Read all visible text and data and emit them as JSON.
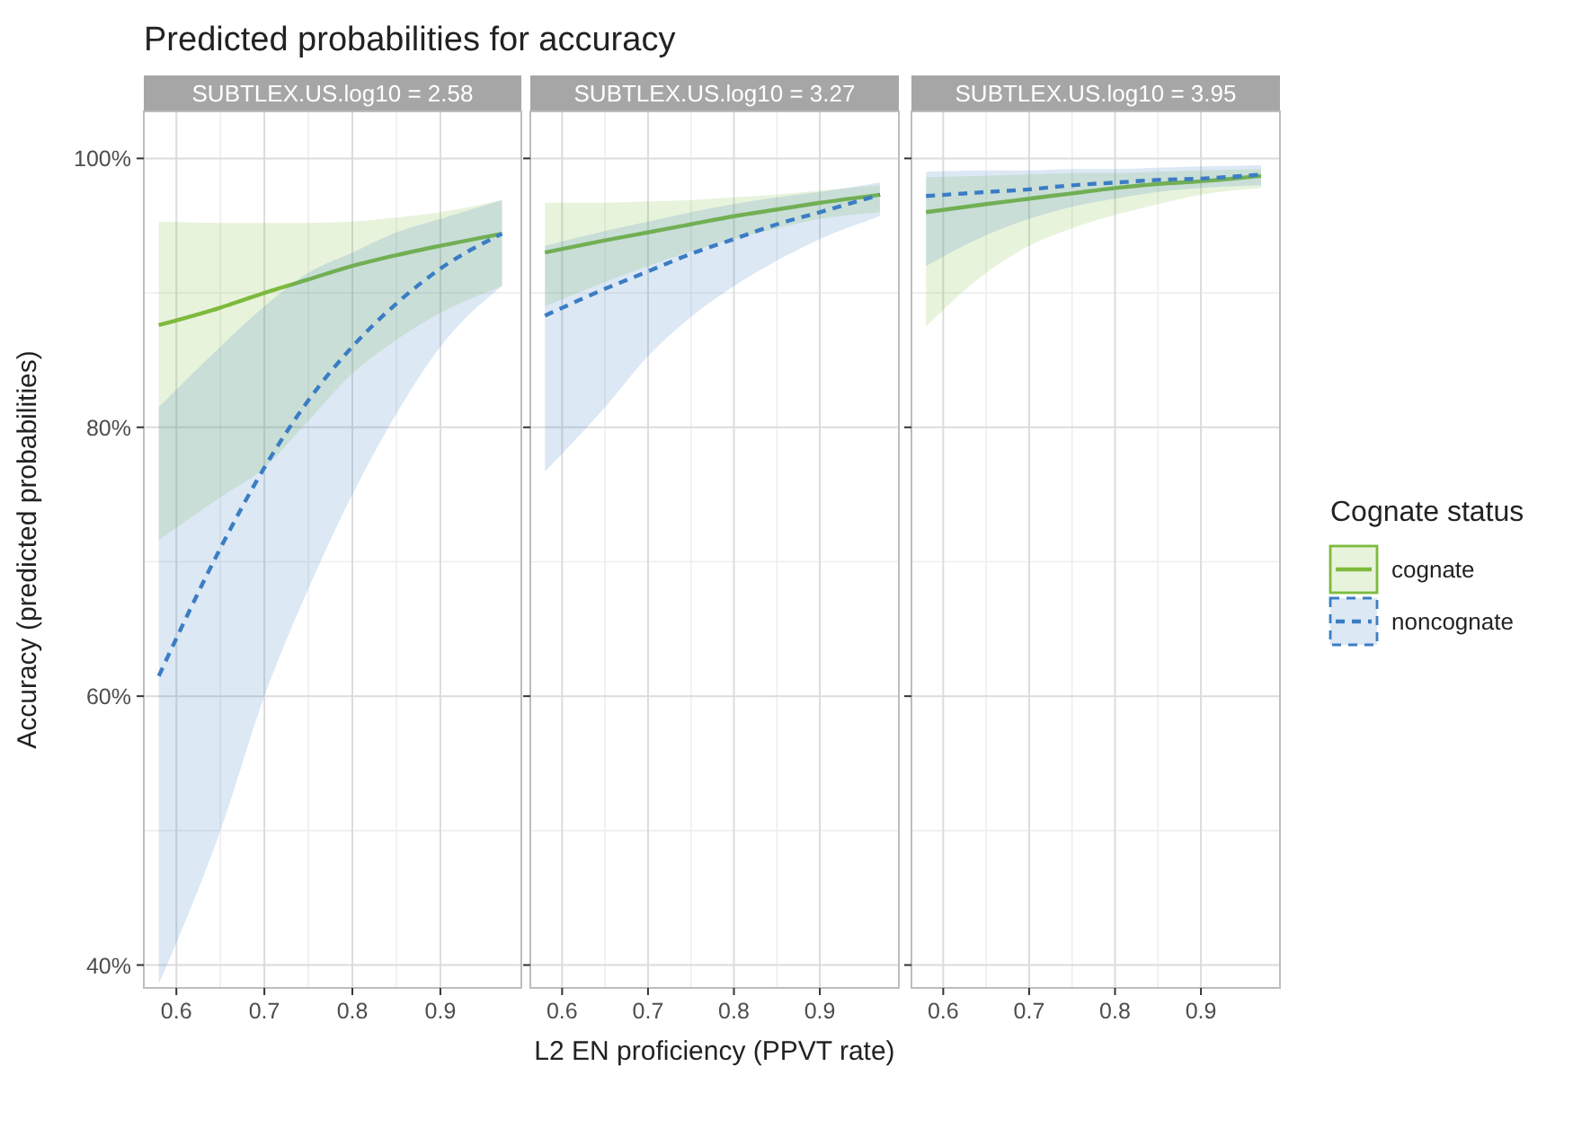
{
  "chart_data": [
    {
      "type": "line",
      "title": "Predicted probabilities for accuracy",
      "subtitle": "SUBTLEX.US.log10 = 2.58",
      "ylabel": "Accuracy (predicted probabilities)",
      "x": [
        0.58,
        0.65,
        0.7,
        0.75,
        0.8,
        0.85,
        0.9,
        0.97
      ],
      "xlim": [
        0.563,
        0.992
      ],
      "xticks": [
        0.6,
        0.7,
        0.8,
        0.9
      ],
      "ylim": [
        38.3,
        103.5
      ],
      "yticks": [
        {
          "value": 40,
          "label": "40%"
        },
        {
          "value": 60,
          "label": "60%"
        },
        {
          "value": 80,
          "label": "80%"
        },
        {
          "value": 100,
          "label": "100%"
        }
      ],
      "grid": true,
      "series": [
        {
          "color": "#7dba3c",
          "line_style": "solid",
          "values": [
            87.6,
            88.9,
            90.0,
            91.0,
            92.0,
            92.8,
            93.5,
            94.4
          ],
          "lower": [
            71.6,
            74.8,
            77,
            80.5,
            84,
            86.5,
            88.5,
            90.5
          ],
          "upper": [
            95.3,
            95.2,
            95.2,
            95.2,
            95.3,
            95.6,
            96,
            96.9
          ]
        },
        {
          "color": "#3b7dc4",
          "line_style": "dashed",
          "values": [
            61.5,
            71,
            77,
            82,
            86,
            89.2,
            91.8,
            94.4
          ],
          "lower": [
            38.6,
            50,
            60,
            68,
            75,
            81,
            86,
            90.5
          ],
          "upper": [
            81.5,
            86,
            89,
            91.5,
            93,
            94.5,
            95.5,
            96.9
          ]
        }
      ]
    },
    {
      "type": "line",
      "subtitle": "SUBTLEX.US.log10 = 3.27",
      "xlabel": "L2 EN proficiency (PPVT rate)",
      "x": [
        0.58,
        0.65,
        0.7,
        0.75,
        0.8,
        0.85,
        0.9,
        0.97
      ],
      "xlim": [
        0.563,
        0.992
      ],
      "xticks": [
        0.6,
        0.7,
        0.8,
        0.9
      ],
      "ylim": [
        38.3,
        103.5
      ],
      "yticks": [
        {
          "value": 40,
          "label": null
        },
        {
          "value": 60,
          "label": null
        },
        {
          "value": 80,
          "label": null
        },
        {
          "value": 100,
          "label": null
        }
      ],
      "tick_labels": "x",
      "grid": true,
      "series": [
        {
          "color": "#7dba3c",
          "line_style": "solid",
          "values": [
            93.0,
            93.9,
            94.5,
            95.1,
            95.7,
            96.2,
            96.7,
            97.3
          ],
          "lower": [
            89,
            90.8,
            92,
            93.1,
            94,
            94.8,
            95.5,
            96
          ],
          "upper": [
            96.7,
            96.7,
            96.8,
            96.9,
            97.1,
            97.3,
            97.6,
            98
          ]
        },
        {
          "color": "#3b7dc4",
          "line_style": "dashed",
          "values": [
            88.3,
            90.3,
            91.6,
            92.9,
            94,
            95.1,
            96,
            97.3
          ],
          "lower": [
            76.7,
            81.5,
            85.3,
            88.2,
            90.5,
            92.4,
            94,
            95.7
          ],
          "upper": [
            93.5,
            94.6,
            95.3,
            96,
            96.6,
            97.1,
            97.5,
            98.2
          ]
        }
      ]
    },
    {
      "type": "line",
      "subtitle": "SUBTLEX.US.log10 = 3.95",
      "legend_title": "Cognate status",
      "legend": "right",
      "x": [
        0.58,
        0.65,
        0.7,
        0.75,
        0.8,
        0.85,
        0.9,
        0.97
      ],
      "xlim": [
        0.563,
        0.992
      ],
      "xticks": [
        0.6,
        0.7,
        0.8,
        0.9
      ],
      "ylim": [
        38.3,
        103.5
      ],
      "yticks": [
        {
          "value": 40,
          "label": null
        },
        {
          "value": 60,
          "label": null
        },
        {
          "value": 80,
          "label": null
        },
        {
          "value": 100,
          "label": null
        }
      ],
      "tick_labels": "x",
      "grid": true,
      "series": [
        {
          "name": "cognate",
          "color": "#7dba3c",
          "line_style": "solid",
          "values": [
            96.0,
            96.6,
            97.0,
            97.4,
            97.8,
            98.1,
            98.3,
            98.7
          ],
          "lower": [
            87.5,
            91.5,
            93.5,
            94.8,
            95.8,
            96.6,
            97.3,
            97.8
          ],
          "upper": [
            98.6,
            98.7,
            98.8,
            98.9,
            98.9,
            99.0,
            99.1,
            99.2
          ]
        },
        {
          "name": "noncognate",
          "color": "#3b7dc4",
          "line_style": "dashed",
          "values": [
            97.2,
            97.5,
            97.7,
            98.0,
            98.2,
            98.4,
            98.5,
            98.8
          ],
          "lower": [
            92,
            94.3,
            95.5,
            96.4,
            97,
            97.5,
            97.8,
            98
          ],
          "upper": [
            99.0,
            99.1,
            99.1,
            99.2,
            99.2,
            99.3,
            99.4,
            99.5
          ]
        }
      ]
    }
  ]
}
